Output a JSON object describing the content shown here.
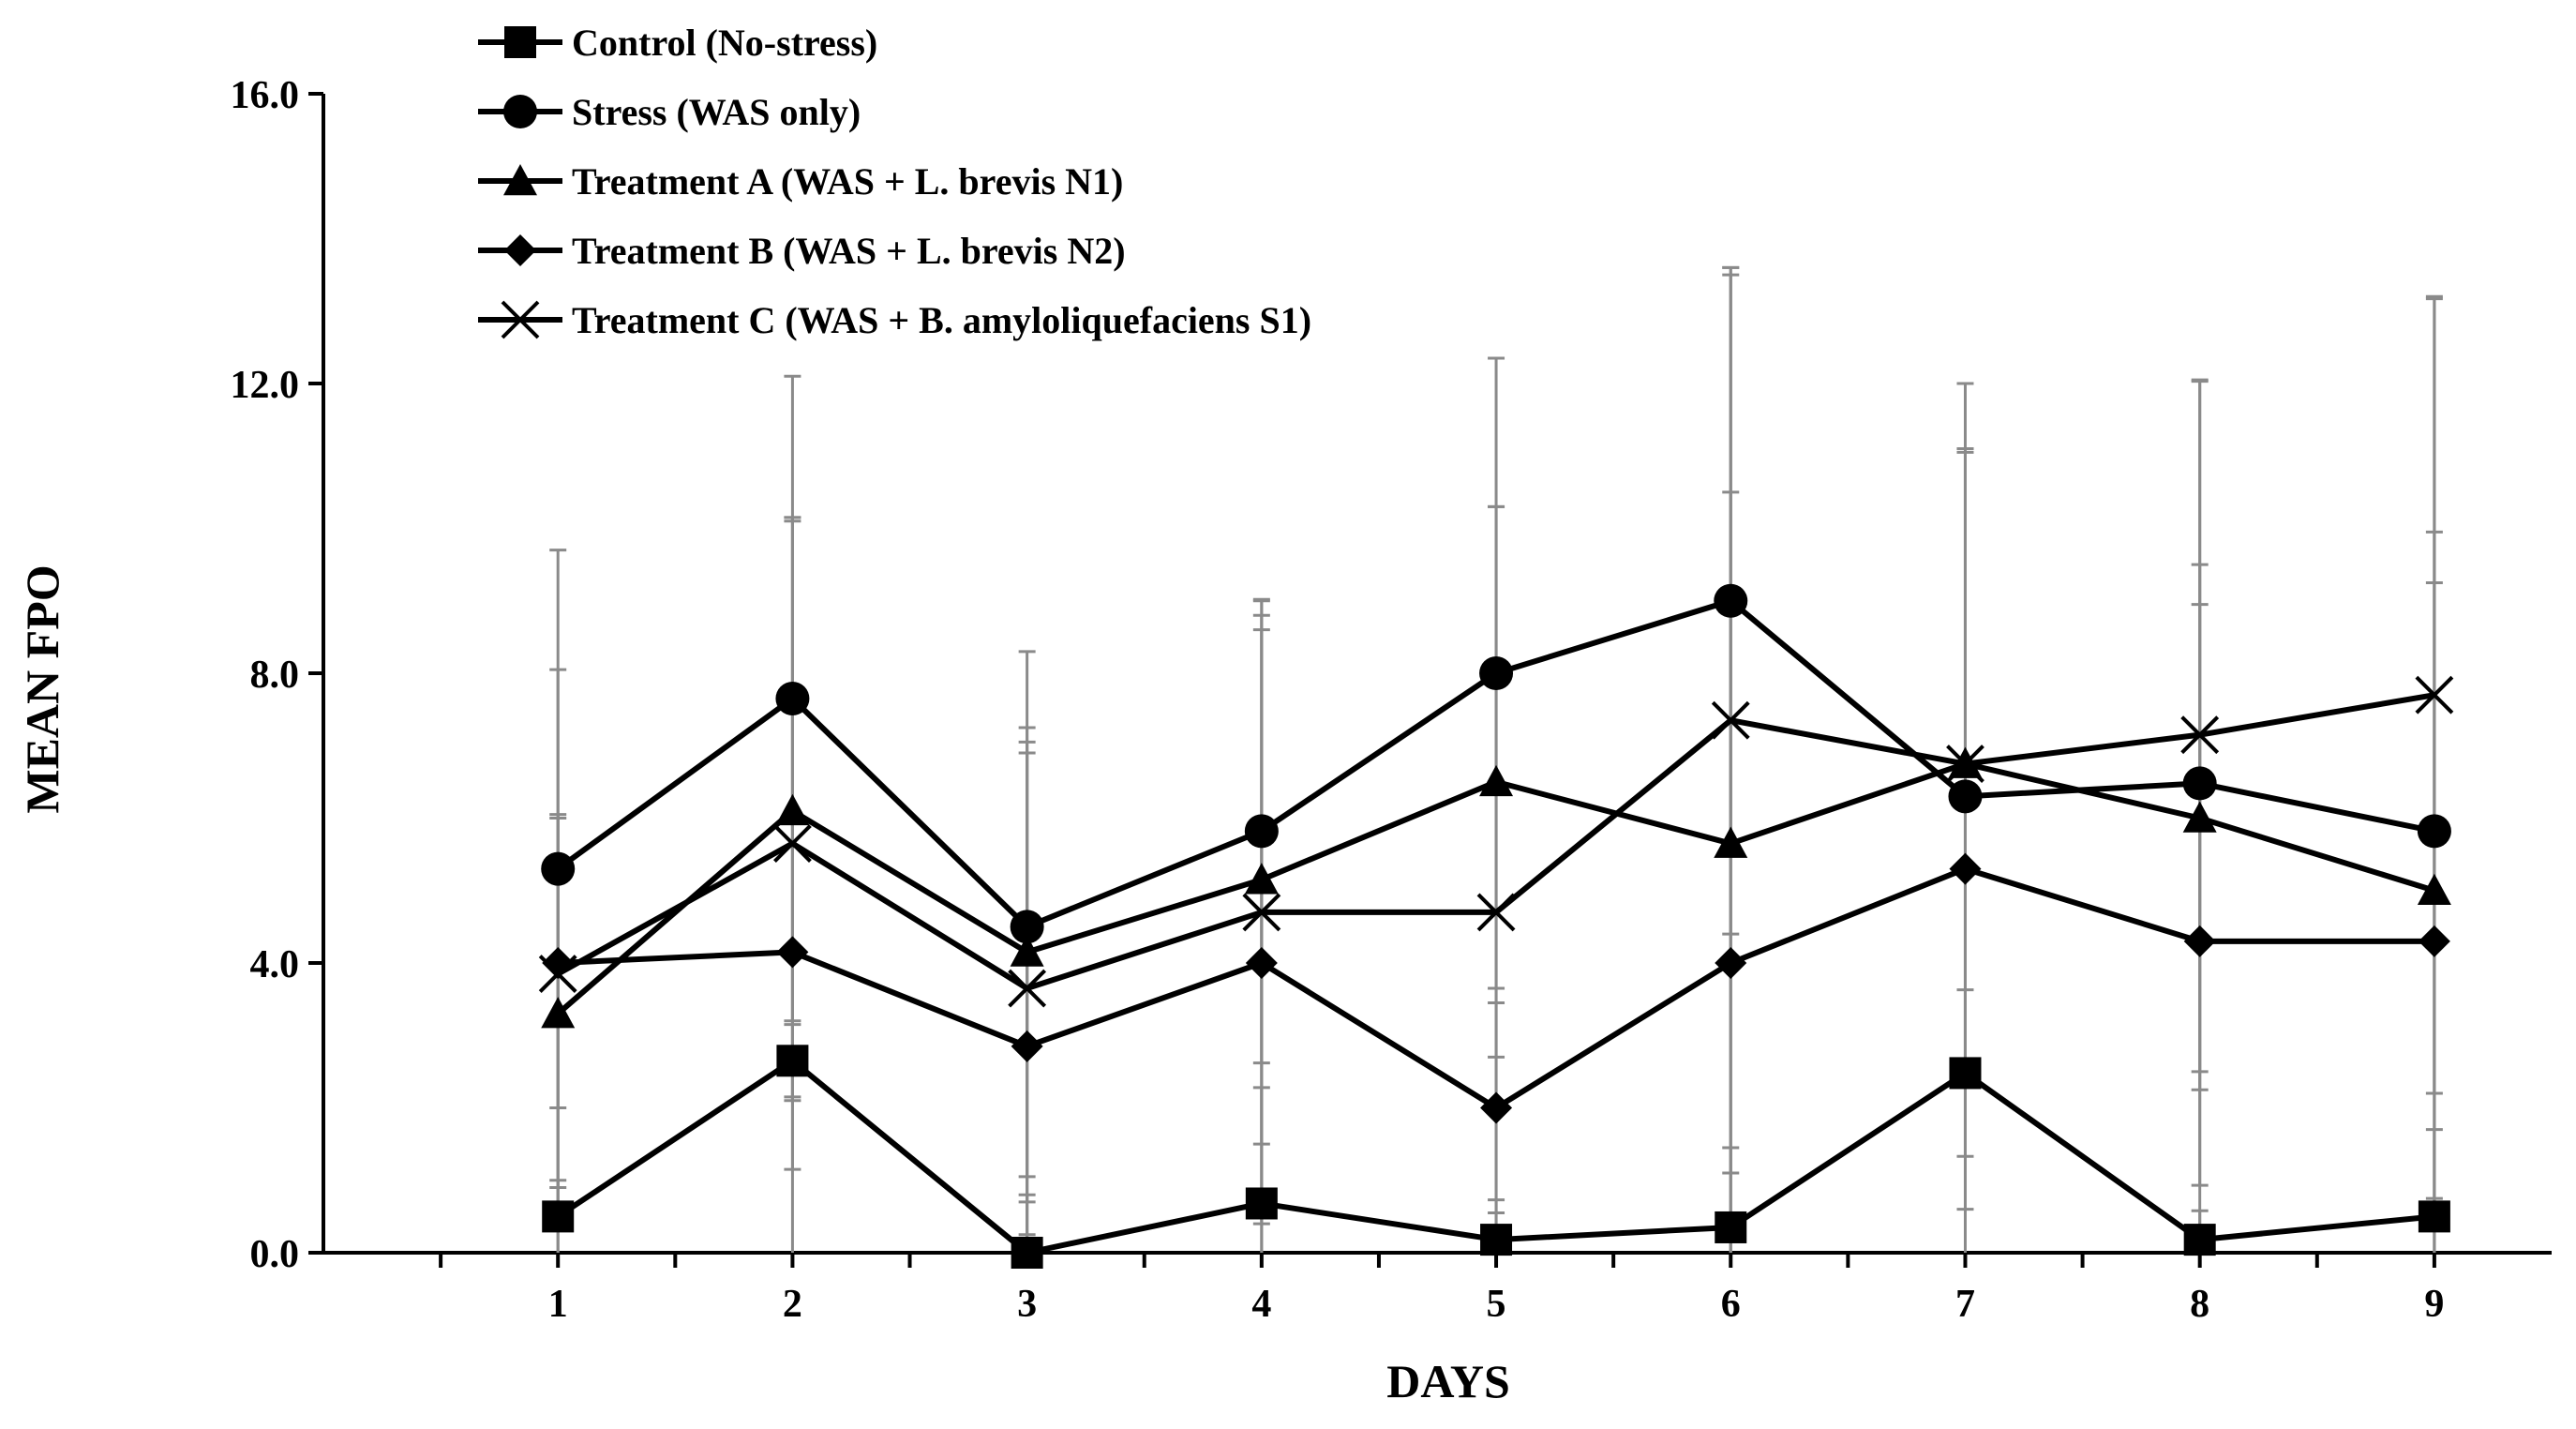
{
  "chart_data": {
    "type": "line",
    "title": "",
    "xlabel": "DAYS",
    "ylabel": "MEAN FPO",
    "x": [
      1,
      2,
      3,
      4,
      5,
      6,
      7,
      8,
      9
    ],
    "x_tick_labels": [
      "1",
      "2",
      "3",
      "4",
      "5",
      "6",
      "7",
      "8",
      "9"
    ],
    "y_tick_labels": [
      "0.0",
      "4.0",
      "8.0",
      "12.0",
      "16.0"
    ],
    "ylim": [
      0,
      16
    ],
    "xlim": [
      0,
      9.5
    ],
    "grid": false,
    "legend_position": "top-left",
    "series": [
      {
        "name": "Control (No-stress)",
        "marker": "square",
        "values": [
          0.5,
          2.65,
          0.0,
          0.68,
          0.18,
          0.35,
          2.48,
          0.18,
          0.5
        ],
        "error": [
          0.5,
          0.5,
          0.8,
          1.6,
          0.55,
          1.1,
          1.15,
          0.4,
          1.2
        ]
      },
      {
        "name": "Stress (WAS only)",
        "marker": "circle",
        "values": [
          5.3,
          7.65,
          4.5,
          5.82,
          8.0,
          9.0,
          6.3,
          6.48,
          5.82
        ],
        "error": [
          4.4,
          4.45,
          3.8,
          3.2,
          4.35,
          4.6,
          5.7,
          5.55,
          7.35
        ]
      },
      {
        "name": "Treatment A (WAS + L. brevis N1)",
        "marker": "triangle",
        "values": [
          3.3,
          6.1,
          4.15,
          5.15,
          6.5,
          5.65,
          6.75,
          6.0,
          5.0
        ],
        "error": [
          2.75,
          4.0,
          3.1,
          3.65,
          3.8,
          7.85,
          4.3,
          3.5,
          4.25
        ]
      },
      {
        "name": "Treatment B (WAS + L. brevis N2)",
        "marker": "diamond",
        "values": [
          4.0,
          4.15,
          2.85,
          4.0,
          2.0,
          4.0,
          5.3,
          4.3,
          4.3
        ],
        "error": [
          2.0,
          6.0,
          4.05,
          4.6,
          1.45,
          6.5,
          5.8,
          4.65,
          5.65
        ]
      },
      {
        "name": "Treatment C (WAS + B. amyloliquefaciens S1)",
        "marker": "x",
        "values": [
          3.85,
          5.65,
          3.65,
          4.7,
          4.7,
          7.35,
          6.75,
          7.15,
          7.7
        ],
        "error": [
          4.2,
          4.5,
          3.4,
          4.3,
          5.6,
          6.25,
          4.35,
          4.9,
          5.5
        ]
      }
    ]
  }
}
